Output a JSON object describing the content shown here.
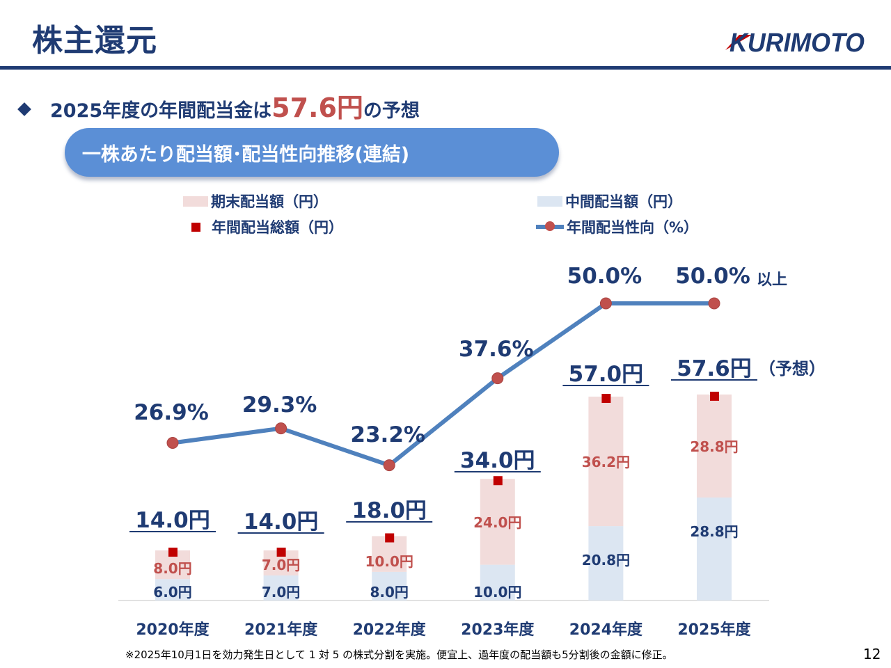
{
  "header": {
    "title": "株主還元",
    "logo_text": "KURIMOTO"
  },
  "headline": {
    "prefix": "2025年度の年間配当金は",
    "highlight": "57.6円",
    "suffix": "の予想"
  },
  "section_title": "一株あたり配当額･配当性向推移(連結)",
  "legend": {
    "year_end": "期末配当額（円）",
    "interim": "中間配当額（円）",
    "annual_total": "年間配当総額（円）",
    "payout_ratio": "年間配当性向（%）"
  },
  "colors": {
    "brand": "#1f3b73",
    "accent": "#c0504d",
    "marker": "#c00000",
    "line": "#4f81bd",
    "year_end_bar": "#f2dcdb",
    "interim_bar": "#dce6f2"
  },
  "chart_data": {
    "type": "bar+line",
    "categories": [
      "2020年度",
      "2021年度",
      "2022年度",
      "2023年度",
      "2024年度",
      "2025年度"
    ],
    "series": [
      {
        "name": "中間配当額（円）",
        "kind": "stacked-bar",
        "values": [
          6.0,
          7.0,
          8.0,
          10.0,
          20.8,
          28.8
        ],
        "labels": [
          "6.0円",
          "7.0円",
          "8.0円",
          "10.0円",
          "20.8円",
          "28.8円"
        ]
      },
      {
        "name": "期末配当額（円）",
        "kind": "stacked-bar",
        "values": [
          8.0,
          7.0,
          10.0,
          24.0,
          36.2,
          28.8
        ],
        "labels": [
          "8.0円",
          "7.0円",
          "10.0円",
          "24.0円",
          "36.2円",
          "28.8円"
        ]
      },
      {
        "name": "年間配当総額（円）",
        "kind": "marker",
        "values": [
          14.0,
          14.0,
          18.0,
          34.0,
          57.0,
          57.6
        ],
        "labels": [
          "14.0円",
          "14.0円",
          "18.0円",
          "34.0円",
          "57.0円",
          "57.6円"
        ]
      },
      {
        "name": "年間配当性向（%）",
        "kind": "line",
        "values": [
          26.9,
          29.3,
          23.2,
          37.6,
          50.0,
          50.0
        ],
        "labels": [
          "26.9%",
          "29.3%",
          "23.2%",
          "37.6%",
          "50.0%",
          "50.0%"
        ]
      }
    ],
    "annotations": {
      "total_suffix_2025": "（予想）",
      "ratio_suffix_2025": "以上"
    }
  },
  "footnote": "※2025年10月1日を効力発生日として 1 対 5 の株式分割を実施。便宜上、過年度の配当額も5分割後の金額に修正。",
  "page_number": "12"
}
